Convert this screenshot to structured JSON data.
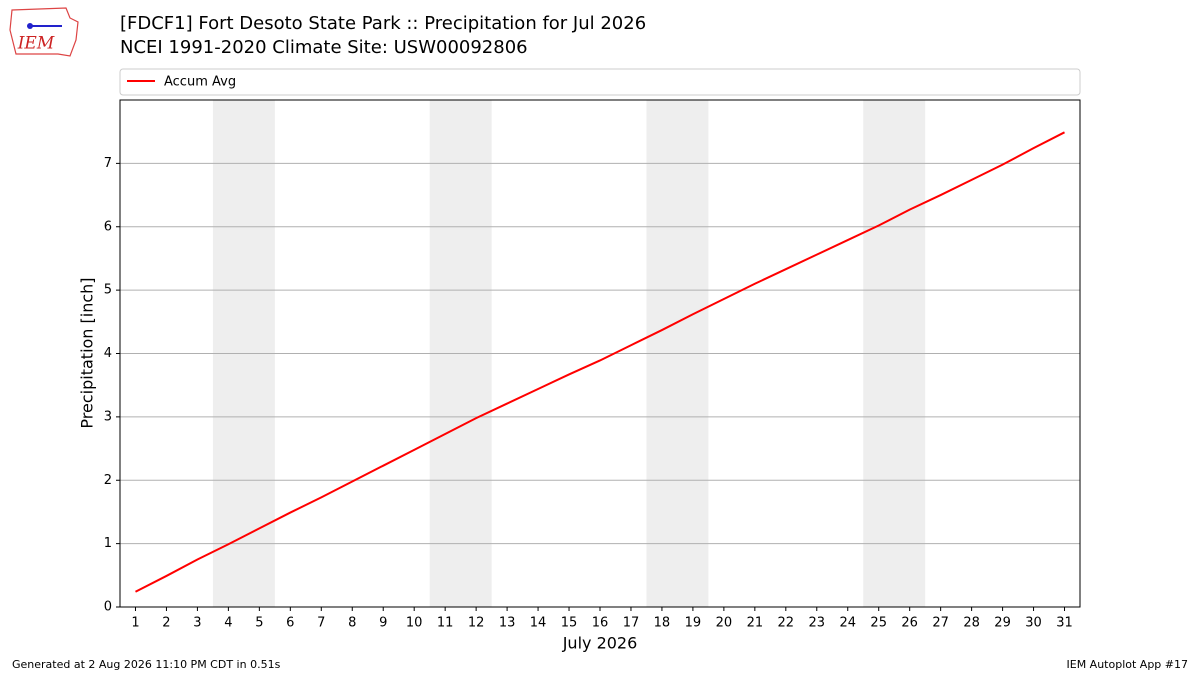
{
  "chart_data": {
    "type": "line",
    "title": "[FDCF1] Fort Desoto State Park :: Precipitation for Jul 2026",
    "subtitle": "NCEI 1991-2020 Climate Site: USW00092806",
    "xlabel": "July 2026",
    "ylabel": "Precipitation [inch]",
    "x": [
      1,
      2,
      3,
      4,
      5,
      6,
      7,
      8,
      9,
      10,
      11,
      12,
      13,
      14,
      15,
      16,
      17,
      18,
      19,
      20,
      21,
      22,
      23,
      24,
      25,
      26,
      27,
      28,
      29,
      30,
      31
    ],
    "series": [
      {
        "name": "Accum Avg",
        "color": "#ff0000",
        "values": [
          0.24,
          0.49,
          0.75,
          0.99,
          1.24,
          1.49,
          1.73,
          1.98,
          2.23,
          2.48,
          2.73,
          2.98,
          3.21,
          3.44,
          3.67,
          3.89,
          4.13,
          4.37,
          4.62,
          4.86,
          5.1,
          5.33,
          5.56,
          5.79,
          6.02,
          6.27,
          6.5,
          6.74,
          6.98,
          7.24,
          7.49
        ]
      }
    ],
    "weekend_spans": [
      [
        3.5,
        5.5
      ],
      [
        10.5,
        12.5
      ],
      [
        17.5,
        19.5
      ],
      [
        24.5,
        26.5
      ]
    ],
    "xlim": [
      0.5,
      31.5
    ],
    "xticks": [
      1,
      2,
      3,
      4,
      5,
      6,
      7,
      8,
      9,
      10,
      11,
      12,
      13,
      14,
      15,
      16,
      17,
      18,
      19,
      20,
      21,
      22,
      23,
      24,
      25,
      26,
      27,
      28,
      29,
      30,
      31
    ],
    "ylim": [
      0,
      8
    ],
    "yticks": [
      0,
      1,
      2,
      3,
      4,
      5,
      6,
      7
    ],
    "grid": true,
    "legend": "top"
  },
  "logo": "IEM",
  "footer_left": "Generated at 2 Aug 2026 11:10 PM CDT in 0.51s",
  "footer_right": "IEM Autoplot App #17"
}
